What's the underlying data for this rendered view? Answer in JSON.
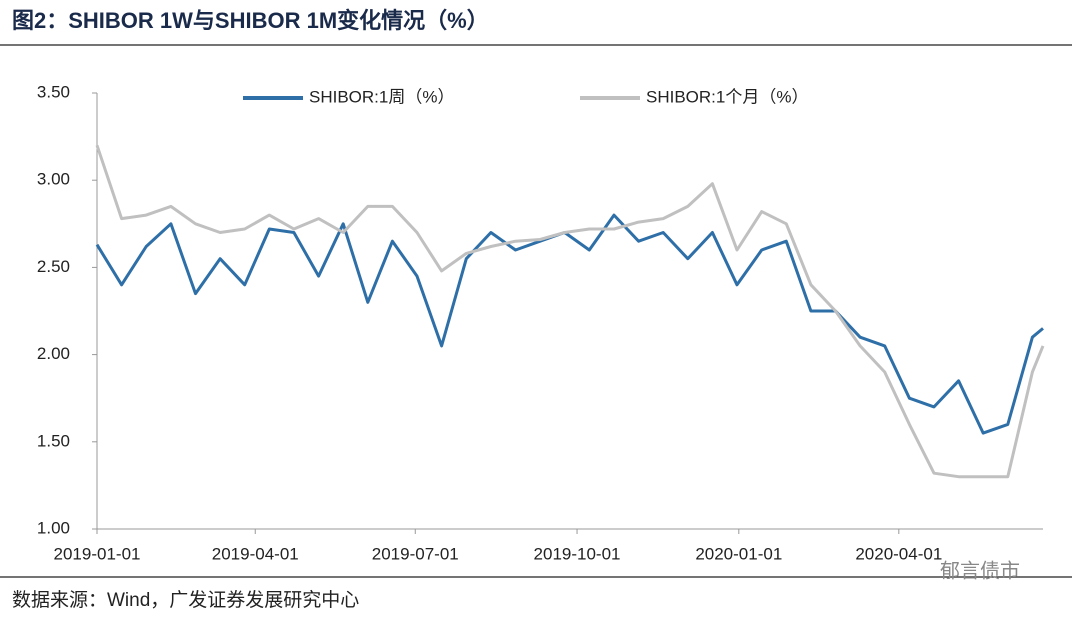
{
  "chart_data": {
    "type": "line",
    "title": "图2：SHIBOR 1W与SHIBOR 1M变化情况（%）",
    "source": "数据来源：Wind，广发证券发展研究中心",
    "watermark": "郁言债市",
    "x": [
      "2019-01-01",
      "2019-01-15",
      "2019-01-29",
      "2019-02-12",
      "2019-02-26",
      "2019-03-12",
      "2019-03-26",
      "2019-04-09",
      "2019-04-23",
      "2019-05-07",
      "2019-05-21",
      "2019-06-04",
      "2019-06-18",
      "2019-07-02",
      "2019-07-16",
      "2019-07-30",
      "2019-08-13",
      "2019-08-27",
      "2019-09-10",
      "2019-09-24",
      "2019-10-08",
      "2019-10-22",
      "2019-11-05",
      "2019-11-19",
      "2019-12-03",
      "2019-12-17",
      "2019-12-31",
      "2020-01-14",
      "2020-01-28",
      "2020-02-11",
      "2020-02-25",
      "2020-03-10",
      "2020-03-24",
      "2020-04-07",
      "2020-04-21",
      "2020-05-05",
      "2020-05-19",
      "2020-06-02",
      "2020-06-16",
      "2020-06-22"
    ],
    "series": [
      {
        "name": "SHIBOR:1周（%）",
        "color": "#2e6fa8",
        "values": [
          2.63,
          2.4,
          2.62,
          2.75,
          2.35,
          2.55,
          2.4,
          2.72,
          2.7,
          2.45,
          2.75,
          2.3,
          2.65,
          2.45,
          2.05,
          2.55,
          2.7,
          2.6,
          2.65,
          2.7,
          2.6,
          2.8,
          2.65,
          2.7,
          2.55,
          2.7,
          2.4,
          2.6,
          2.65,
          2.25,
          2.25,
          2.1,
          2.05,
          1.75,
          1.7,
          1.85,
          1.55,
          1.6,
          2.1,
          2.15
        ]
      },
      {
        "name": "SHIBOR:1个月（%）",
        "color": "#c0c0c0",
        "values": [
          3.2,
          2.78,
          2.8,
          2.85,
          2.75,
          2.7,
          2.72,
          2.8,
          2.72,
          2.78,
          2.7,
          2.85,
          2.85,
          2.7,
          2.48,
          2.58,
          2.62,
          2.65,
          2.66,
          2.7,
          2.72,
          2.72,
          2.76,
          2.78,
          2.85,
          2.98,
          2.6,
          2.82,
          2.75,
          2.4,
          2.25,
          2.05,
          1.9,
          1.6,
          1.32,
          1.3,
          1.3,
          1.3,
          1.9,
          2.05
        ]
      }
    ],
    "xlim": [
      "2019-01-01",
      "2020-06-22"
    ],
    "xticks": [
      "2019-01-01",
      "2019-04-01",
      "2019-07-01",
      "2019-10-01",
      "2020-01-01",
      "2020-04-01"
    ],
    "ylim": [
      1,
      3.5
    ],
    "yticks": [
      {
        "value": 1,
        "label": "1.00"
      },
      {
        "value": 1.5,
        "label": "1.50"
      },
      {
        "value": 2,
        "label": "2.00"
      },
      {
        "value": 2.5,
        "label": "2.50"
      },
      {
        "value": 3,
        "label": "3.00"
      },
      {
        "value": 3.5,
        "label": "3.50"
      }
    ],
    "legend": "top"
  }
}
